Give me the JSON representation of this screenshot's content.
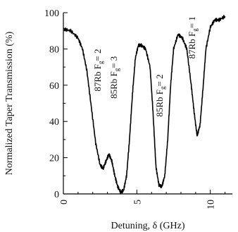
{
  "chart_data": {
    "type": "line",
    "title": "",
    "xlabel": "Detuning, δ (GHz)",
    "ylabel": "Normalized Taper Transmission (%)",
    "xlim": [
      0,
      11.5
    ],
    "ylim": [
      0,
      100
    ],
    "x_ticks": [
      0,
      5,
      10
    ],
    "y_ticks": [
      0,
      20,
      40,
      60,
      80,
      100
    ],
    "grid": false,
    "legend": "none",
    "series": [
      {
        "color": "#000000",
        "x": [
          0,
          0.5,
          1.0,
          1.3,
          1.6,
          1.9,
          2.2,
          2.5,
          2.7,
          2.9,
          3.1,
          3.3,
          3.5,
          3.7,
          3.9,
          4.1,
          4.3,
          4.5,
          4.7,
          4.9,
          5.1,
          5.3,
          5.6,
          5.9,
          6.1,
          6.3,
          6.5,
          6.7,
          6.9,
          7.1,
          7.3,
          7.5,
          7.8,
          8.1,
          8.4,
          8.7,
          8.9,
          9.1,
          9.3,
          9.5,
          9.7,
          10.0,
          10.3,
          10.6,
          11.0
        ],
        "y": [
          91,
          90,
          86,
          80,
          68,
          48,
          28,
          16,
          14,
          18,
          22,
          18,
          10,
          4,
          1,
          2,
          10,
          30,
          55,
          75,
          82,
          82,
          80,
          70,
          45,
          15,
          5,
          4,
          10,
          30,
          60,
          80,
          88,
          86,
          80,
          60,
          45,
          32,
          38,
          58,
          80,
          92,
          96,
          96,
          98
        ]
      }
    ],
    "annotations": [
      {
        "text": "87Rb F",
        "sub": "g",
        "tail": "= 2",
        "x": 2.55,
        "y": 80
      },
      {
        "text": "85Rb F",
        "sub": "g",
        "tail": "= 3",
        "x": 3.65,
        "y": 76
      },
      {
        "text": "85Rb F",
        "sub": "g",
        "tail": "= 2",
        "x": 6.75,
        "y": 66
      },
      {
        "text": "87Rb F",
        "sub": "g",
        "tail": "= 1",
        "x": 8.95,
        "y": 98
      }
    ]
  }
}
